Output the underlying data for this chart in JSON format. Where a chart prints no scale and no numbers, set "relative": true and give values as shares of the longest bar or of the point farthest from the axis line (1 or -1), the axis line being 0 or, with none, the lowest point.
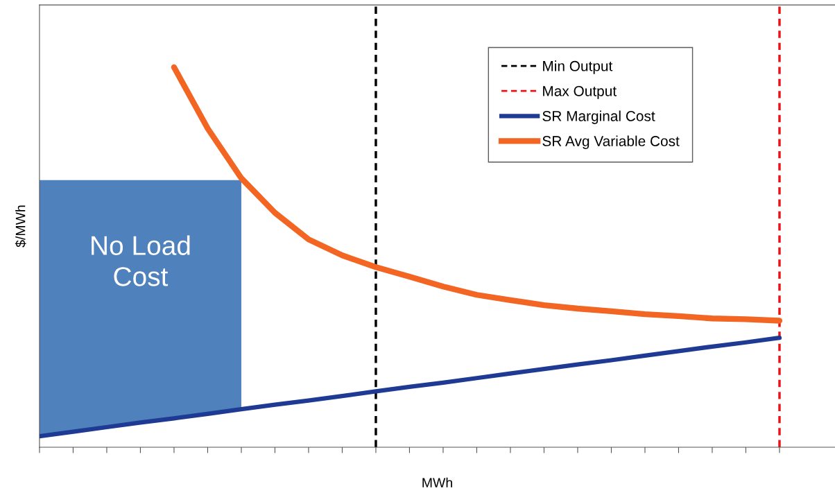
{
  "chart_data": {
    "type": "line",
    "relative": true,
    "xlabel": "MWh",
    "ylabel": "$/MWh",
    "categories": [
      null,
      null,
      null,
      null,
      null,
      null,
      null,
      null,
      null,
      null,
      null,
      null,
      null,
      null,
      null,
      null,
      null,
      null,
      null,
      null,
      null,
      null,
      null
    ],
    "series": [
      {
        "type": "area",
        "color": "#4f81bd",
        "values": [
          0.703,
          0.703,
          0.703,
          0.703,
          0.703,
          0.703,
          0.703,
          null,
          null,
          null,
          null,
          null,
          null,
          null,
          null,
          null,
          null,
          null,
          null,
          null,
          null,
          null,
          null
        ]
      },
      {
        "name": "SR Marginal Cost",
        "color": "#1f3a93",
        "values": [
          0.029,
          0.041,
          0.053,
          0.065,
          0.076,
          0.088,
          0.1,
          0.112,
          0.123,
          0.135,
          0.147,
          0.159,
          0.17,
          0.182,
          0.194,
          0.206,
          0.218,
          0.229,
          0.241,
          0.253,
          0.265,
          0.276,
          0.288
        ]
      },
      {
        "name": "SR Avg Variable Cost",
        "color": "#f26522",
        "values": [
          null,
          null,
          null,
          null,
          1,
          0.839,
          0.708,
          0.617,
          0.547,
          0.505,
          0.474,
          0.449,
          0.423,
          0.401,
          0.387,
          0.374,
          0.365,
          0.358,
          0.35,
          0.345,
          0.339,
          0.337,
          0.333
        ]
      }
    ],
    "ref_lines": [
      {
        "axis": "x",
        "label": "Min Output",
        "color": "#000000",
        "line_style": "dashed"
      },
      {
        "axis": "x",
        "label": "Max Output",
        "color": "#e8141b",
        "line_style": "dashed"
      }
    ],
    "annotations": [
      "No Load\nCost"
    ],
    "legend": "top right",
    "grid": false,
    "marker": "none",
    "line_style": "solid"
  }
}
